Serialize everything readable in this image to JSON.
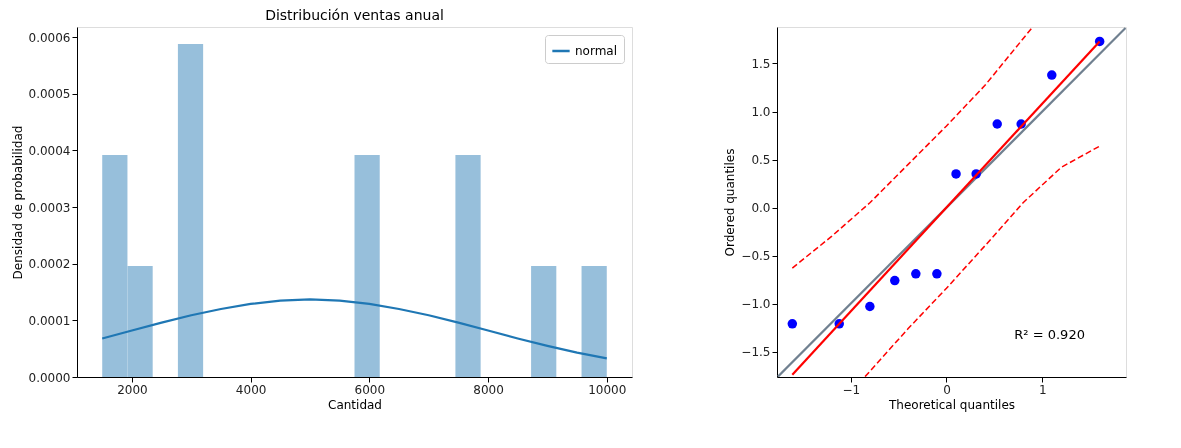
{
  "chart_data": [
    {
      "type": "histogram",
      "title": "Distribución ventas anual",
      "xlabel": "Cantidad",
      "ylabel": "Densidad de probabilidad",
      "bins": [
        1500,
        1925,
        2350,
        2775,
        3200,
        3625,
        4050,
        4475,
        4900,
        5325,
        5750,
        6175,
        6600,
        7025,
        7450,
        7875,
        8300,
        8725,
        9150,
        9575,
        10000
      ],
      "values": [
        0.000392,
        0.000196,
        0,
        0.000588,
        0,
        0,
        0,
        0,
        0,
        0,
        0.000392,
        0,
        0,
        0,
        0.000392,
        0,
        0,
        0.000196,
        0,
        0.000196
      ],
      "color": "#97bfdb",
      "series": [
        {
          "name": "normal",
          "type": "line",
          "color": "#1f77b4",
          "x": [
            1500,
            2000,
            2500,
            3000,
            3500,
            4000,
            4500,
            5000,
            5500,
            6000,
            6500,
            7000,
            7500,
            8000,
            8500,
            9000,
            9500,
            10000
          ],
          "values": [
            6.8e-05,
            8.2e-05,
            9.6e-05,
            0.000109,
            0.00012,
            0.000129,
            0.000135,
            0.000137,
            0.000135,
            0.000129,
            0.00012,
            0.000109,
            9.6e-05,
            8.2e-05,
            6.8e-05,
            5.5e-05,
            4.3e-05,
            3.3e-05
          ]
        }
      ],
      "xlim": [
        1075,
        10425
      ],
      "xticks": [
        2000,
        4000,
        6000,
        8000,
        10000
      ],
      "ylim": [
        0,
        0.000618
      ],
      "yticks": [
        {
          "value": 0,
          "label": "0.0000"
        },
        {
          "value": 0.0001,
          "label": "0.0001"
        },
        {
          "value": 0.0002,
          "label": "0.0002"
        },
        {
          "value": 0.0003,
          "label": "0.0003"
        },
        {
          "value": 0.0004,
          "label": "0.0004"
        },
        {
          "value": 0.0005,
          "label": "0.0005"
        },
        {
          "value": 0.0006,
          "label": "0.0006"
        }
      ],
      "legend": "top right",
      "grid": false
    },
    {
      "type": "scatter",
      "xlabel": "Theoretical quantiles",
      "ylabel": "Ordered quantiles",
      "series": [
        {
          "type": "line",
          "color": "#708090",
          "x": [
            -1.76,
            1.87
          ],
          "values": [
            -1.76,
            1.87
          ]
        },
        {
          "type": "line",
          "color": "#ff0000",
          "line_style": "dashed",
          "x": [
            -1.61,
            -1.2,
            -0.8,
            -0.4,
            0,
            0.4,
            0.9
          ],
          "values": [
            -0.63,
            -0.3,
            0.05,
            0.45,
            0.85,
            1.27,
            1.88
          ]
        },
        {
          "type": "line",
          "color": "#ff0000",
          "line_style": "dashed",
          "x": [
            -0.85,
            -0.4,
            0,
            0.4,
            0.8,
            1.2,
            1.6
          ],
          "values": [
            -1.76,
            -1.26,
            -0.84,
            -0.4,
            0.05,
            0.42,
            0.64
          ]
        },
        {
          "type": "scatter",
          "marker": "circle",
          "color": "#0000ff",
          "x": [
            -1.61,
            -1.12,
            -0.8,
            -0.54,
            -0.32,
            -0.1,
            0.1,
            0.31,
            0.53,
            0.78,
            1.1,
            1.6
          ],
          "values": [
            -1.21,
            -1.21,
            -1.03,
            -0.76,
            -0.69,
            -0.69,
            0.35,
            0.35,
            0.87,
            0.87,
            1.38,
            1.73
          ]
        },
        {
          "type": "line",
          "color": "#ff0000",
          "x": [
            -1.61,
            1.6
          ],
          "values": [
            -1.74,
            1.73
          ]
        }
      ],
      "xlim": [
        -1.77,
        1.875
      ],
      "xticks": [
        {
          "value": -1,
          "label": "−1"
        },
        0,
        1
      ],
      "ylim": [
        -1.764,
        1.88
      ],
      "yticks": [
        {
          "value": -1.5,
          "label": "−1.5"
        },
        {
          "value": -1,
          "label": "−1.0"
        },
        {
          "value": -0.5,
          "label": "−0.5"
        },
        {
          "value": 0,
          "label": "0.0"
        },
        0.5,
        {
          "value": 1,
          "label": "1.0"
        },
        1.5
      ],
      "annotations": [
        "R² = 0.920"
      ],
      "grid": false
    }
  ]
}
